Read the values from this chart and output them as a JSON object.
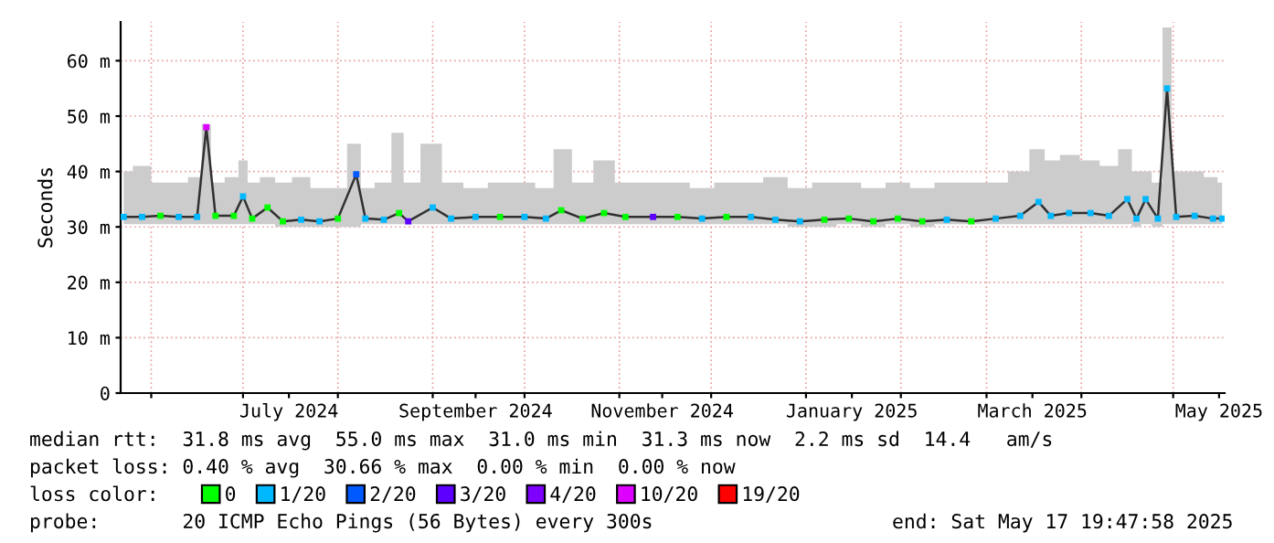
{
  "chart_data": {
    "type": "line",
    "ylabel": "Seconds",
    "legend_title": "loss color:",
    "legend": "bottom",
    "grid": true,
    "marker": "square",
    "xlim": [
      "2024-05-22",
      "2025-05-17T19:47"
    ],
    "ylim": [
      0,
      67
    ],
    "yticks": [
      0,
      {
        "value": 10,
        "label": "10 m"
      },
      {
        "value": 20,
        "label": "20 m"
      },
      {
        "value": 30,
        "label": "30 m"
      },
      {
        "value": 40,
        "label": "40 m"
      },
      {
        "value": 50,
        "label": "50 m"
      },
      {
        "value": 60,
        "label": "60 m"
      }
    ],
    "xticks": [
      {
        "value": "2024-06-01",
        "label": null
      },
      {
        "value": "2024-07-01",
        "label": null
      },
      {
        "value": "2024-07-16",
        "label": "July 2024"
      },
      {
        "value": "2024-08-01",
        "label": null
      },
      {
        "value": "2024-09-01",
        "label": null
      },
      {
        "value": "2024-09-15",
        "label": "September 2024"
      },
      {
        "value": "2024-10-01",
        "label": null
      },
      {
        "value": "2024-11-01",
        "label": null
      },
      {
        "value": "2024-11-15",
        "label": "November 2024"
      },
      {
        "value": "2024-12-01",
        "label": null
      },
      {
        "value": "2025-01-01",
        "label": null
      },
      {
        "value": "2025-01-16",
        "label": "January 2025"
      },
      {
        "value": "2025-02-01",
        "label": null
      },
      {
        "value": "2025-03-01",
        "label": null
      },
      {
        "value": "2025-03-16",
        "label": "March 2025"
      },
      {
        "value": "2025-04-01",
        "label": null
      },
      {
        "value": "2025-05-01",
        "label": null
      },
      {
        "value": "2025-05-16",
        "label": "May 2025"
      }
    ],
    "x": [
      "2024-05-23",
      "2024-05-29",
      "2024-06-04",
      "2024-06-10",
      "2024-06-16",
      "2024-06-19",
      "2024-06-22",
      "2024-06-28",
      "2024-07-01",
      "2024-07-04",
      "2024-07-09",
      "2024-07-14",
      "2024-07-20",
      "2024-07-26",
      "2024-08-01",
      "2024-08-07",
      "2024-08-10",
      "2024-08-16",
      "2024-08-21",
      "2024-08-24",
      "2024-09-01",
      "2024-09-07",
      "2024-09-15",
      "2024-09-23",
      "2024-10-01",
      "2024-10-08",
      "2024-10-13",
      "2024-10-20",
      "2024-10-27",
      "2024-11-03",
      "2024-11-12",
      "2024-11-20",
      "2024-11-28",
      "2024-12-06",
      "2024-12-14",
      "2024-12-22",
      "2024-12-30",
      "2025-01-07",
      "2025-01-15",
      "2025-01-23",
      "2025-01-31",
      "2025-02-08",
      "2025-02-16",
      "2025-02-24",
      "2025-03-04",
      "2025-03-12",
      "2025-03-18",
      "2025-03-22",
      "2025-03-28",
      "2025-04-04",
      "2025-04-10",
      "2025-04-16",
      "2025-04-19",
      "2025-04-22",
      "2025-04-26",
      "2025-04-29",
      "2025-05-02",
      "2025-05-08",
      "2025-05-14",
      "2025-05-17"
    ],
    "series": [
      {
        "color": "#303030",
        "marker": "none",
        "values": [
          31.8,
          31.8,
          32,
          31.8,
          31.8,
          48,
          32,
          32,
          35.5,
          31.5,
          33.5,
          31,
          31.3,
          31,
          31.5,
          39.5,
          31.5,
          31.3,
          32.5,
          31,
          33.5,
          31.5,
          31.8,
          31.8,
          31.8,
          31.5,
          33,
          31.5,
          32.5,
          31.8,
          31.8,
          31.8,
          31.5,
          31.8,
          31.8,
          31.3,
          31,
          31.3,
          31.5,
          31,
          31.5,
          31,
          31.3,
          31,
          31.5,
          32,
          34.5,
          32,
          32.5,
          32.5,
          32,
          35,
          31.5,
          35,
          31.5,
          55,
          31.8,
          32,
          31.5,
          31.5
        ],
        "lower": [
          30.5,
          30.5,
          30.5,
          30.5,
          30.5,
          30.5,
          30.5,
          30.5,
          30.5,
          30.5,
          30.5,
          30,
          30,
          30,
          30,
          30,
          30.5,
          30.5,
          30.5,
          30.5,
          30.5,
          30.5,
          30.5,
          30.5,
          30.5,
          30.5,
          30.5,
          30.5,
          30.5,
          30.5,
          30.5,
          30.5,
          30.5,
          30.5,
          30.5,
          30.5,
          30,
          30,
          30.5,
          30,
          30.5,
          30,
          30.5,
          30.5,
          30.5,
          30.5,
          30.5,
          30.5,
          30.5,
          30.5,
          30.5,
          30.5,
          30,
          30.5,
          30,
          30.5,
          30.5,
          30.5,
          30.5,
          30.5
        ],
        "upper": [
          40,
          41,
          38,
          38,
          39,
          48.5,
          38,
          39,
          42,
          38,
          39,
          38,
          39,
          37,
          37,
          45,
          37,
          38,
          47,
          38,
          45,
          38,
          37,
          38,
          38,
          37,
          44,
          38,
          42,
          38,
          38,
          38,
          37,
          38,
          38,
          39,
          37,
          38,
          38,
          37,
          38,
          37,
          38,
          38,
          38,
          40,
          44,
          42,
          43,
          42,
          41,
          44,
          40,
          40,
          38,
          66,
          40,
          40,
          39,
          38
        ]
      },
      {
        "type": "scatter",
        "name": "0",
        "color": "#00ff00",
        "x": [
          "2024-06-04",
          "2024-06-22",
          "2024-06-28",
          "2024-07-04",
          "2024-07-09",
          "2024-07-14",
          "2024-08-01",
          "2024-08-21",
          "2024-09-23",
          "2024-10-13",
          "2024-10-20",
          "2024-10-27",
          "2024-11-03",
          "2024-11-20",
          "2024-12-06",
          "2025-01-07",
          "2025-01-15",
          "2025-01-23",
          "2025-01-31",
          "2025-02-08",
          "2025-02-24"
        ],
        "values": [
          32,
          32,
          32,
          31.5,
          33.5,
          31,
          31.5,
          32.5,
          31.8,
          33,
          31.5,
          32.5,
          31.8,
          31.8,
          31.8,
          31.3,
          31.5,
          31,
          31.5,
          31,
          31
        ]
      },
      {
        "type": "scatter",
        "name": "1/20",
        "color": "#00b8ff",
        "x": [
          "2024-05-23",
          "2024-05-29",
          "2024-06-10",
          "2024-06-16",
          "2024-07-01",
          "2024-07-20",
          "2024-07-26",
          "2024-08-10",
          "2024-08-16",
          "2024-09-01",
          "2024-09-07",
          "2024-09-15",
          "2024-10-01",
          "2024-10-08",
          "2024-11-28",
          "2024-12-14",
          "2024-12-22",
          "2024-12-30",
          "2025-02-16",
          "2025-03-04",
          "2025-03-12",
          "2025-03-18",
          "2025-03-22",
          "2025-03-28",
          "2025-04-04",
          "2025-04-10",
          "2025-04-16",
          "2025-04-19",
          "2025-04-22",
          "2025-04-26",
          "2025-04-29",
          "2025-05-02",
          "2025-05-08",
          "2025-05-14",
          "2025-05-17"
        ],
        "values": [
          31.8,
          31.8,
          31.8,
          31.8,
          35.5,
          31.3,
          31,
          31.5,
          31.3,
          33.5,
          31.5,
          31.8,
          31.8,
          31.5,
          31.5,
          31.8,
          31.3,
          31,
          31.3,
          31.5,
          32,
          34.5,
          32,
          32.5,
          32.5,
          32,
          35,
          31.5,
          35,
          31.5,
          55,
          31.8,
          32,
          31.5,
          31.5
        ]
      },
      {
        "type": "scatter",
        "name": "2/20",
        "color": "#0059ff",
        "x": [
          "2024-08-07"
        ],
        "values": [
          39.5
        ]
      },
      {
        "type": "scatter",
        "name": "3/20",
        "color": "#5e00ff",
        "x": [
          "2024-08-24",
          "2024-11-12"
        ],
        "values": [
          31,
          31.8
        ]
      },
      {
        "type": "scatter",
        "name": "4/20",
        "color": "#7e00ff",
        "values": [
          null,
          null,
          null,
          null,
          null,
          null,
          null,
          null,
          null,
          null,
          null,
          null,
          null,
          null,
          null,
          null,
          null,
          null,
          null,
          null,
          null,
          null,
          null,
          null,
          null,
          null,
          null,
          null,
          null,
          null,
          null,
          null,
          null,
          null,
          null,
          null,
          null,
          null,
          null,
          null,
          null,
          null,
          null,
          null,
          null,
          null,
          null,
          null,
          null,
          null,
          null,
          null,
          null,
          null,
          null,
          null,
          null,
          null,
          null,
          null
        ]
      },
      {
        "type": "scatter",
        "name": "10/20",
        "color": "#dd00ff",
        "x": [
          "2024-06-19"
        ],
        "values": [
          48
        ]
      },
      {
        "type": "scatter",
        "name": "19/20",
        "color": "#ff0000",
        "values": [
          null,
          null,
          null,
          null,
          null,
          null,
          null,
          null,
          null,
          null,
          null,
          null,
          null,
          null,
          null,
          null,
          null,
          null,
          null,
          null,
          null,
          null,
          null,
          null,
          null,
          null,
          null,
          null,
          null,
          null,
          null,
          null,
          null,
          null,
          null,
          null,
          null,
          null,
          null,
          null,
          null,
          null,
          null,
          null,
          null,
          null,
          null,
          null,
          null,
          null,
          null,
          null,
          null,
          null,
          null,
          null,
          null,
          null,
          null,
          null
        ]
      }
    ],
    "annotations": [
      "median rtt:  31.8 ms avg  55.0 ms max  31.0 ms min  31.3 ms now  2.2 ms sd  14.4   am/s",
      "packet loss: 0.40 % avg  30.66 % max  0.00 % min  0.00 % now",
      "probe:       20 ICMP Echo Pings (56 Bytes) every 300s",
      "end: Sat May 17 19:47:58 2025"
    ]
  }
}
